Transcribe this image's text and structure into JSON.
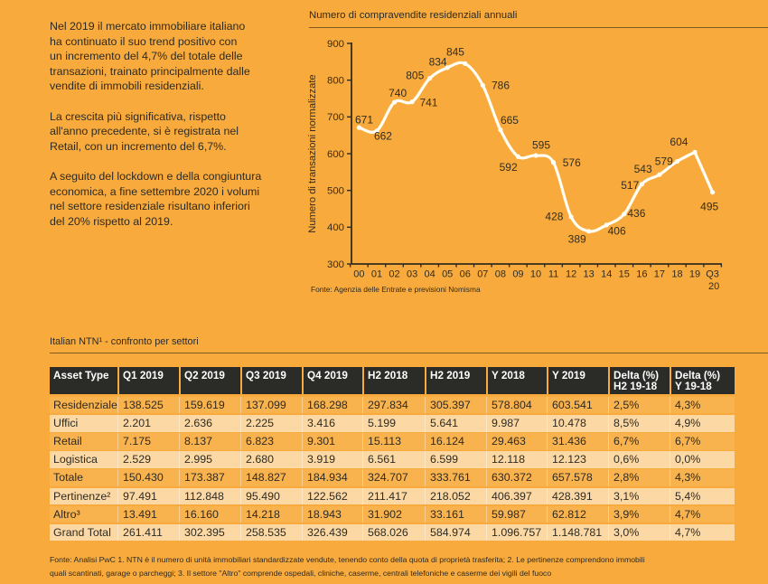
{
  "background_color": "#F8AB3C",
  "intro": {
    "paragraphs": [
      "Nel 2019 il mercato immobiliare italiano\nha continuato il suo trend positivo con\nun incremento del 4,7% del totale delle\ntransazioni, trainato principalmente dalle\nvendite di immobili residenziali.",
      "La crescita più significativa, rispetto\nall'anno precedente, si è registrata nel\nRetail, con un incremento del 6,7%.",
      "A seguito del lockdown e della congiuntura\neconomica, a fine settembre 2020 i volumi\nnel settore residenziale risultano inferiori\ndel 20% rispetto al 2019."
    ]
  },
  "chart_data": {
    "type": "line",
    "title": "Numero di compravendite residenziali annuali",
    "ylabel": "Numero di transazioni normalizzate",
    "source": "Fonte: Agenzia delle Entrate e previsioni Nomisma",
    "categories": [
      "00",
      "01",
      "02",
      "03",
      "04",
      "05",
      "06",
      "07",
      "08",
      "09",
      "10",
      "11",
      "12",
      "13",
      "14",
      "15",
      "16",
      "17",
      "18",
      "19",
      "Q3 20"
    ],
    "values": [
      671,
      662,
      740,
      741,
      805,
      834,
      845,
      786,
      665,
      592,
      595,
      576,
      428,
      389,
      406,
      436,
      517,
      543,
      579,
      604,
      495
    ],
    "ylim": [
      300,
      900
    ],
    "ytick_step": 100,
    "grid": false,
    "legend": false,
    "line_color": "#FFFDF4",
    "label_offsets": [
      [
        5.6,
        -8.8
      ],
      [
        7,
        5.6
      ],
      [
        3.6,
        -10.4
      ],
      [
        18.4,
        0.8
      ],
      [
        -16.4,
        -3.2
      ],
      [
        -10.6,
        -6.3
      ],
      [
        -10.8,
        -13.3
      ],
      [
        19.7,
        0.1
      ],
      [
        10.1,
        -10.6
      ],
      [
        -10.8,
        11.7
      ],
      [
        6,
        -11.6
      ],
      [
        20.2,
        -0.2
      ],
      [
        -18.7,
        -0.8
      ],
      [
        -13,
        8.3
      ],
      [
        11.4,
        6.2
      ],
      [
        13.6,
        -0.9
      ],
      [
        -13.1,
        0.8
      ],
      [
        -18.3,
        -6.2
      ],
      [
        -14.7,
        -0.3
      ],
      [
        -17.6,
        -11.6
      ],
      [
        -3.4,
        15.8
      ]
    ]
  },
  "table": {
    "title": "Italian NTN¹ - confronto per settori",
    "columns": [
      "Asset Type",
      "Q1 2019",
      "Q2 2019",
      "Q3 2019",
      "Q4 2019",
      "H2 2018",
      "H2 2019",
      "Y 2018",
      "Y 2019",
      "Delta (%)\nH2 19-18",
      "Delta (%)\nY 19-18"
    ],
    "rows": [
      [
        "Residenziale",
        "138.525",
        "159.619",
        "137.099",
        "168.298",
        "297.834",
        "305.397",
        "578.804",
        "603.541",
        "2,5%",
        "4,3%"
      ],
      [
        "Uffici",
        "2.201",
        "2.636",
        "2.225",
        "3.416",
        "5.199",
        "5.641",
        "9.987",
        "10.478",
        "8,5%",
        "4,9%"
      ],
      [
        "Retail",
        "7.175",
        "8.137",
        "6.823",
        "9.301",
        "15.113",
        "16.124",
        "29.463",
        "31.436",
        "6,7%",
        "6,7%"
      ],
      [
        "Logistica",
        "2.529",
        "2.995",
        "2.680",
        "3.919",
        "6.561",
        "6.599",
        "12.118",
        "12.123",
        "0,6%",
        "0,0%"
      ],
      [
        "Totale",
        "150.430",
        "173.387",
        "148.827",
        "184.934",
        "324.707",
        "333.761",
        "630.372",
        "657.578",
        "2,8%",
        "4,3%"
      ],
      [
        "Pertinenze²",
        "97.491",
        "112.848",
        "95.490",
        "122.562",
        "211.417",
        "218.052",
        "406.397",
        "428.391",
        "3,1%",
        "5,4%"
      ],
      [
        "Altro³",
        "13.491",
        "16.160",
        "14.218",
        "18.943",
        "31.902",
        "33.161",
        "59.987",
        "62.812",
        "3,9%",
        "4,7%"
      ],
      [
        "Grand Total",
        "261.411",
        "302.395",
        "258.535",
        "326.439",
        "568.026",
        "584.974",
        "1.096.757",
        "1.148.781",
        "3,0%",
        "4,7%"
      ]
    ],
    "row_colors": {
      "odd": "#F9B34E",
      "even": "#FCD9A4",
      "header": "#2b2b28"
    }
  },
  "footnote": "Fonte: Analisi PwC 1. NTN è il numero di unità immobiliari standardizzate vendute, tenendo conto della quota di proprietà trasferita; 2. Le pertinenze comprendono immobili\nquali scantinati, garage o parcheggi; 3. Il settore \"Altro\" comprende ospedali, cliniche, caserme, centrali telefoniche e caserme dei vigili del fuoco"
}
